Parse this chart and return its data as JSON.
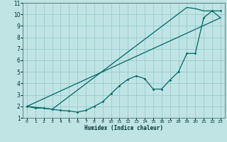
{
  "title": "",
  "xlabel": "Humidex (Indice chaleur)",
  "bg_color": "#c0e4e4",
  "line_color": "#006666",
  "grid_color": "#98cccc",
  "xlim": [
    -0.5,
    23.5
  ],
  "ylim": [
    1,
    11
  ],
  "xticks": [
    0,
    1,
    2,
    3,
    4,
    5,
    6,
    7,
    8,
    9,
    10,
    11,
    12,
    13,
    14,
    15,
    16,
    17,
    18,
    19,
    20,
    21,
    22,
    23
  ],
  "yticks": [
    1,
    2,
    3,
    4,
    5,
    6,
    7,
    8,
    9,
    10,
    11
  ],
  "line1_x": [
    0,
    1,
    2,
    3,
    4,
    5,
    6,
    7,
    8,
    9,
    10,
    11,
    12,
    13,
    14,
    15,
    16,
    17,
    18,
    19,
    20,
    21,
    22,
    23
  ],
  "line1_y": [
    2.0,
    1.85,
    1.85,
    1.75,
    1.65,
    1.6,
    1.5,
    1.65,
    2.0,
    2.4,
    3.1,
    3.8,
    4.35,
    4.65,
    4.4,
    3.5,
    3.5,
    4.3,
    5.0,
    6.6,
    6.6,
    9.7,
    10.3,
    10.3
  ],
  "line2_x": [
    0,
    3,
    19,
    20,
    21,
    22,
    23
  ],
  "line2_y": [
    2.0,
    1.75,
    10.6,
    10.5,
    10.3,
    10.3,
    9.7
  ],
  "line3_x": [
    0,
    23
  ],
  "line3_y": [
    2.0,
    9.7
  ]
}
